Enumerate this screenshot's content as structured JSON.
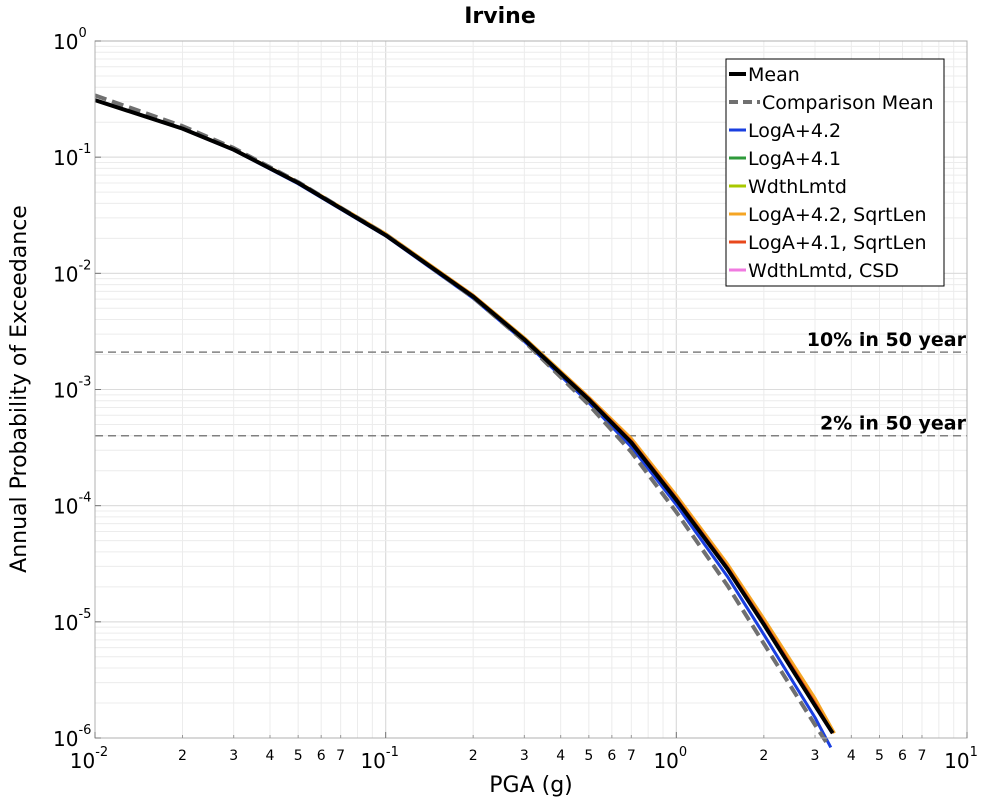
{
  "chart_data": {
    "type": "line",
    "title": "Irvine",
    "xlabel": "PGA (g)",
    "ylabel": "Annual Probability of Exceedance",
    "x_scale": "log",
    "y_scale": "log",
    "xlim": [
      0.01,
      10
    ],
    "ylim": [
      1e-06,
      1
    ],
    "grid": true,
    "legend_position": "top-right",
    "x_major_ticks": [
      {
        "value": 0.01,
        "base": "10",
        "exp": "-2"
      },
      {
        "value": 0.1,
        "base": "10",
        "exp": "-1"
      },
      {
        "value": 1,
        "base": "10",
        "exp": "0"
      },
      {
        "value": 10,
        "base": "10",
        "exp": "1"
      }
    ],
    "y_major_ticks": [
      {
        "value": 1,
        "base": "10",
        "exp": "0"
      },
      {
        "value": 0.1,
        "base": "10",
        "exp": "-1"
      },
      {
        "value": 0.01,
        "base": "10",
        "exp": "-2"
      },
      {
        "value": 0.001,
        "base": "10",
        "exp": "-3"
      },
      {
        "value": 0.0001,
        "base": "10",
        "exp": "-4"
      },
      {
        "value": 1e-05,
        "base": "10",
        "exp": "-5"
      },
      {
        "value": 1e-06,
        "base": "10",
        "exp": "-6"
      }
    ],
    "x_minor_tick_labels": [
      "2",
      "3",
      "4",
      "5",
      "6",
      "7"
    ],
    "reference_lines": [
      {
        "label": "10% in 50 year",
        "y": 0.0021,
        "color": "#808080"
      },
      {
        "label": "2% in 50 year",
        "y": 0.0004,
        "color": "#808080"
      }
    ],
    "series": [
      {
        "name": "LogA+4.2",
        "color": "#1a3fe0",
        "style": "solid",
        "width": 3,
        "x": [
          0.01,
          0.02,
          0.03,
          0.05,
          0.1,
          0.2,
          0.3,
          0.5,
          0.7,
          1.0,
          1.5,
          2.0,
          3.0,
          3.4
        ],
        "y": [
          0.31,
          0.175,
          0.115,
          0.059,
          0.021,
          0.0061,
          0.0026,
          0.00077,
          0.00032,
          0.000102,
          2.45e-05,
          7.8e-06,
          1.5e-06,
          8.3e-07
        ]
      },
      {
        "name": "LogA+4.1",
        "color": "#2e9a3a",
        "style": "solid",
        "width": 3,
        "x": [
          0.01,
          0.02,
          0.03,
          0.05,
          0.1,
          0.2,
          0.3,
          0.5,
          0.7,
          1.0,
          1.5,
          2.0,
          3.0,
          3.45
        ],
        "y": [
          0.31,
          0.176,
          0.116,
          0.06,
          0.0213,
          0.0063,
          0.0027,
          0.00082,
          0.00035,
          0.000112,
          2.85e-05,
          9.5e-06,
          1.9e-06,
          1.1e-06
        ]
      },
      {
        "name": "WdthLmtd",
        "color": "#a8c800",
        "style": "solid",
        "width": 3,
        "x": [
          0.01,
          0.02,
          0.03,
          0.05,
          0.1,
          0.2,
          0.3,
          0.5,
          0.7,
          1.0,
          1.5,
          2.0,
          3.0,
          3.45
        ],
        "y": [
          0.31,
          0.176,
          0.116,
          0.06,
          0.0214,
          0.0063,
          0.0027,
          0.00083,
          0.00036,
          0.000116,
          2.95e-05,
          9.9e-06,
          2e-06,
          1.1e-06
        ]
      },
      {
        "name": "LogA+4.2, SqrtLen",
        "color": "#f5a524",
        "style": "solid",
        "width": 3,
        "x": [
          0.01,
          0.02,
          0.03,
          0.05,
          0.1,
          0.2,
          0.3,
          0.5,
          0.7,
          1.0,
          1.5,
          2.0,
          3.0,
          3.5
        ],
        "y": [
          0.31,
          0.177,
          0.117,
          0.061,
          0.022,
          0.0065,
          0.0028,
          0.00086,
          0.00038,
          0.000123,
          3.15e-05,
          1.07e-05,
          2.2e-06,
          1.1e-06
        ]
      },
      {
        "name": "LogA+4.1, SqrtLen",
        "color": "#e8481c",
        "style": "solid",
        "width": 3,
        "x": [
          0.01,
          0.02,
          0.03,
          0.05,
          0.1,
          0.2,
          0.3,
          0.5,
          0.7,
          1.0,
          1.5,
          2.0,
          3.0,
          3.45
        ],
        "y": [
          0.31,
          0.176,
          0.116,
          0.06,
          0.0214,
          0.0064,
          0.0027,
          0.00084,
          0.00036,
          0.000116,
          2.95e-05,
          9.9e-06,
          2e-06,
          1.1e-06
        ]
      },
      {
        "name": "WdthLmtd, CSD",
        "color": "#f07ae0",
        "style": "solid",
        "width": 3,
        "x": [
          0.01,
          0.02,
          0.03,
          0.05,
          0.1,
          0.2,
          0.3,
          0.5,
          0.7,
          1.0,
          1.5,
          2.0,
          3.0,
          3.45
        ],
        "y": [
          0.31,
          0.176,
          0.116,
          0.06,
          0.0213,
          0.0063,
          0.0027,
          0.00082,
          0.00035,
          0.000112,
          2.85e-05,
          9.5e-06,
          1.9e-06,
          1.1e-06
        ]
      },
      {
        "name": "Comparison Mean",
        "color": "#707070",
        "style": "dashed",
        "width": 4,
        "x": [
          0.01,
          0.02,
          0.03,
          0.05,
          0.1,
          0.2,
          0.3,
          0.5,
          0.7,
          1.0,
          1.5,
          2.0,
          3.0,
          3.35
        ],
        "y": [
          0.34,
          0.185,
          0.12,
          0.061,
          0.0215,
          0.0062,
          0.0026,
          0.00074,
          0.00029,
          8.8e-05,
          2.05e-05,
          6.5e-06,
          1.3e-06,
          8.5e-07
        ]
      },
      {
        "name": "Mean",
        "color": "#000000",
        "style": "solid",
        "width": 4,
        "x": [
          0.01,
          0.02,
          0.03,
          0.05,
          0.1,
          0.2,
          0.3,
          0.5,
          0.7,
          1.0,
          1.5,
          2.0,
          3.0,
          3.45
        ],
        "y": [
          0.31,
          0.176,
          0.116,
          0.06,
          0.0213,
          0.0063,
          0.0027,
          0.00082,
          0.00035,
          0.000112,
          2.85e-05,
          9.5e-06,
          1.9e-06,
          1.1e-06
        ]
      }
    ],
    "legend_order": [
      "Mean",
      "Comparison Mean",
      "LogA+4.2",
      "LogA+4.1",
      "WdthLmtd",
      "LogA+4.2, SqrtLen",
      "LogA+4.1, SqrtLen",
      "WdthLmtd, CSD"
    ]
  }
}
